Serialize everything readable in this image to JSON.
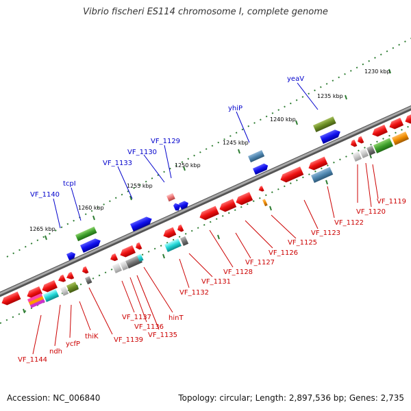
{
  "title": "Vibrio fischeri ES114 chromosome I, complete genome",
  "footer": {
    "accession": "Accession: NC_006840",
    "stats": "Topology: circular; Length: 2,897,536 bp; Genes: 2,735"
  },
  "colors": {
    "backbone": "#8a8a8a",
    "forward_label": "#0000cc",
    "reverse_label": "#cc0000",
    "tick_forward": "#2e7d32",
    "tick_reverse": "#2e7d32"
  },
  "kbp_labels": [
    {
      "text": "1265 kbp"
    },
    {
      "text": "1260 kbp"
    },
    {
      "text": "1255 kbp"
    },
    {
      "text": "1250 kbp"
    },
    {
      "text": "1245 kbp"
    },
    {
      "text": "1240 kbp"
    },
    {
      "text": "1235 kbp"
    },
    {
      "text": "1230 kbp"
    }
  ],
  "forward_gene_labels": [
    "VF_1140",
    "tcpI",
    "VF_1133",
    "VF_1130",
    "VF_1129",
    "yhiP",
    "yeaV"
  ],
  "reverse_gene_labels": [
    "VF_1144",
    "ndh",
    "ycfP",
    "thiK",
    "VF_1139",
    "VF_1137",
    "VF_1136",
    "VF_1135",
    "hinT",
    "VF_1132",
    "VF_1131",
    "VF_1128",
    "VF_1127",
    "VF_1126",
    "VF_1125",
    "VF_1123",
    "VF_1122",
    "VF_1120",
    "VF_1119"
  ],
  "gene_blocks": [
    {
      "name": "VF_1140-arrow",
      "color": "#1010ee"
    },
    {
      "name": "tcpI-block",
      "color": "#4aa02c"
    },
    {
      "name": "tcpI-arrow",
      "color": "#1010ee"
    },
    {
      "name": "VF_1133-arrow",
      "color": "#1010ee"
    },
    {
      "name": "VF_1130-block",
      "color": "#ee7777"
    },
    {
      "name": "VF_1129-arrow",
      "color": "#1010ee"
    },
    {
      "name": "yhiP-block",
      "color": "#4f86b0"
    },
    {
      "name": "yhiP-arrow",
      "color": "#1010ee"
    },
    {
      "name": "yeaV-block",
      "color": "#6b8e23"
    },
    {
      "name": "yeaV-arrow",
      "color": "#1010ee"
    }
  ]
}
